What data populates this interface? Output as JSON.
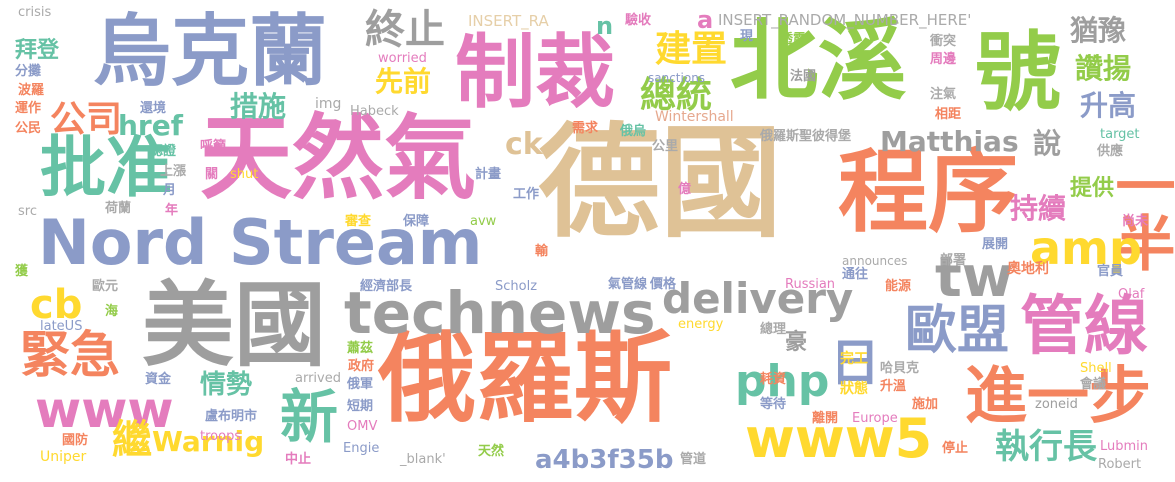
{
  "palette": {
    "tan": "#dfc296",
    "orange": "#f4845f",
    "green": "#93cc4a",
    "pink": "#e47cbd",
    "blue": "#8b9bc8",
    "gray": "#9e9e9e",
    "yellow": "#ffd92f",
    "teal": "#66c2a5"
  },
  "words": [
    {
      "id": "w1",
      "text": "德國",
      "color": "#dfc296"
    },
    {
      "id": "w2",
      "text": "天然氣",
      "color": "#e47cbd"
    },
    {
      "id": "w3",
      "text": "程序",
      "color": "#f4845f"
    },
    {
      "id": "w4",
      "text": "北溪",
      "color": "#93cc4a"
    },
    {
      "id": "w5",
      "text": "號",
      "color": "#93cc4a"
    },
    {
      "id": "w6",
      "text": "俄羅斯",
      "color": "#f4845f"
    },
    {
      "id": "w7",
      "text": "美國",
      "color": "#9e9e9e"
    },
    {
      "id": "w8",
      "text": "烏克蘭",
      "color": "#8b9bc8"
    },
    {
      "id": "w9",
      "text": "制裁",
      "color": "#e47cbd"
    },
    {
      "id": "w10",
      "text": "Nord Stream",
      "color": "#8b9bc8"
    },
    {
      "id": "w11",
      "text": "technews",
      "color": "#9e9e9e"
    },
    {
      "id": "w12",
      "text": "批准",
      "color": "#66c2a5"
    },
    {
      "id": "w13",
      "text": "管線",
      "color": "#e47cbd"
    },
    {
      "id": "w14",
      "text": "進一步",
      "color": "#f4845f"
    },
    {
      "id": "w15",
      "text": "www5",
      "color": "#ffd92f"
    },
    {
      "id": "w16",
      "text": "www",
      "color": "#e47cbd"
    },
    {
      "id": "w17",
      "text": "delivery",
      "color": "#9e9e9e"
    },
    {
      "id": "w18",
      "text": "一半",
      "color": "#f4845f"
    },
    {
      "id": "w19",
      "text": "amp",
      "color": "#ffd92f"
    },
    {
      "id": "w20",
      "text": "tw",
      "color": "#9e9e9e"
    },
    {
      "id": "w21",
      "text": "歐盟",
      "color": "#8b9bc8"
    },
    {
      "id": "w22",
      "text": "php",
      "color": "#66c2a5"
    },
    {
      "id": "w23",
      "text": "日",
      "color": "#8b9bc8"
    },
    {
      "id": "w24",
      "text": "新",
      "color": "#66c2a5"
    },
    {
      "id": "w25",
      "text": "緊急",
      "color": "#f4845f"
    },
    {
      "id": "w26",
      "text": "cb",
      "color": "#ffd92f"
    },
    {
      "id": "w27",
      "text": "a4b3f35b",
      "color": "#8b9bc8"
    },
    {
      "id": "w28",
      "text": "執行長",
      "color": "#66c2a5"
    },
    {
      "id": "w29",
      "text": "Matthias",
      "color": "#9e9e9e"
    },
    {
      "id": "w30",
      "text": "公司",
      "color": "#f4845f"
    },
    {
      "id": "w31",
      "text": "href",
      "color": "#66c2a5"
    },
    {
      "id": "w32",
      "text": "措施",
      "color": "#66c2a5"
    },
    {
      "id": "w33",
      "text": "先前",
      "color": "#ffd92f"
    },
    {
      "id": "w34",
      "text": "終止",
      "color": "#9e9e9e"
    },
    {
      "id": "w35",
      "text": "建置",
      "color": "#ffd92f"
    },
    {
      "id": "w36",
      "text": "總統",
      "color": "#93cc4a"
    },
    {
      "id": "w37",
      "text": "ck",
      "color": "#dfc296"
    },
    {
      "id": "w38",
      "text": "猶豫",
      "color": "#9e9e9e"
    },
    {
      "id": "w39",
      "text": "讚揚",
      "color": "#93cc4a"
    },
    {
      "id": "w40",
      "text": "升高",
      "color": "#8b9bc8"
    },
    {
      "id": "w41",
      "text": "說",
      "color": "#9e9e9e"
    },
    {
      "id": "w42",
      "text": "持續",
      "color": "#e47cbd"
    },
    {
      "id": "w43",
      "text": "提供",
      "color": "#93cc4a"
    },
    {
      "id": "w44",
      "text": "拜登",
      "color": "#66c2a5"
    },
    {
      "id": "w45",
      "text": "情勢",
      "color": "#66c2a5"
    },
    {
      "id": "w46",
      "text": "Warnig",
      "color": "#ffd92f"
    },
    {
      "id": "w47",
      "text": "繼",
      "color": "#ffd92f"
    },
    {
      "id": "w48",
      "text": "豪",
      "color": "#9e9e9e"
    },
    {
      "id": "w49",
      "text": "n",
      "color": "#66c2a5"
    },
    {
      "id": "w50",
      "text": "a",
      "color": "#e47cbd"
    },
    {
      "id": "w51",
      "text": "完工",
      "color": "#ffd92f"
    },
    {
      "id": "w52",
      "text": "狀態",
      "color": "#ffd92f"
    },
    {
      "id": "w53",
      "text": "奧地利",
      "color": "#f4845f"
    },
    {
      "id": "w54",
      "text": "INSERT_RA",
      "color": "#e6cfa8"
    },
    {
      "id": "w55",
      "text": "INSERT_RANDOM_NUMBER_HERE'",
      "color": "#aaaaaa"
    },
    {
      "id": "w56",
      "text": "crisis",
      "color": "#aaaaaa"
    },
    {
      "id": "w57",
      "text": "分攤",
      "color": "#8b9bc8"
    },
    {
      "id": "w58",
      "text": "波羅",
      "color": "#f4845f"
    },
    {
      "id": "w59",
      "text": "運作",
      "color": "#f4845f"
    },
    {
      "id": "w60",
      "text": "公民",
      "color": "#f4845f"
    },
    {
      "id": "w61",
      "text": "還境",
      "color": "#8b9bc8"
    },
    {
      "id": "w62",
      "text": "呼籲",
      "color": "#e47cbd"
    },
    {
      "id": "w63",
      "text": "認證",
      "color": "#66c2a5"
    },
    {
      "id": "w64",
      "text": "上漲",
      "color": "#aaaaaa"
    },
    {
      "id": "w65",
      "text": "月",
      "color": "#8b9bc8"
    },
    {
      "id": "w66",
      "text": "關",
      "color": "#e47cbd"
    },
    {
      "id": "w67",
      "text": "shut",
      "color": "#ffd92f"
    },
    {
      "id": "w68",
      "text": "年",
      "color": "#e47cbd"
    },
    {
      "id": "w69",
      "text": "荷蘭",
      "color": "#aaaaaa"
    },
    {
      "id": "w70",
      "text": "src",
      "color": "#aaaaaa"
    },
    {
      "id": "w71",
      "text": "img",
      "color": "#aaaaaa"
    },
    {
      "id": "w72",
      "text": "Habeck",
      "color": "#aaaaaa"
    },
    {
      "id": "w73",
      "text": "worried",
      "color": "#e47cbd"
    },
    {
      "id": "w74",
      "text": "Wintershall",
      "color": "#e6a98f"
    },
    {
      "id": "w75",
      "text": "sanctions",
      "color": "#8b9bc8"
    },
    {
      "id": "w76",
      "text": "驗收",
      "color": "#e47cbd"
    },
    {
      "id": "w77",
      "text": "現",
      "color": "#8b9bc8"
    },
    {
      "id": "w78",
      "text": "透露",
      "color": "#93cc4a"
    },
    {
      "id": "w79",
      "text": "衝突",
      "color": "#aaaaaa"
    },
    {
      "id": "w80",
      "text": "周邊",
      "color": "#e47cbd"
    },
    {
      "id": "w81",
      "text": "法國",
      "color": "#9e9e9e"
    },
    {
      "id": "w82",
      "text": "注氣",
      "color": "#aaaaaa"
    },
    {
      "id": "w83",
      "text": "相距",
      "color": "#f4845f"
    },
    {
      "id": "w84",
      "text": "需求",
      "color": "#f4845f"
    },
    {
      "id": "w85",
      "text": "俄烏",
      "color": "#66c2a5"
    },
    {
      "id": "w86",
      "text": "俄羅斯聖彼得堡",
      "color": "#aaaaaa"
    },
    {
      "id": "w87",
      "text": "公里",
      "color": "#aaaaaa"
    },
    {
      "id": "w88",
      "text": "target",
      "color": "#66c2a5"
    },
    {
      "id": "w89",
      "text": "供應",
      "color": "#aaaaaa"
    },
    {
      "id": "w90",
      "text": "計畫",
      "color": "#8b9bc8"
    },
    {
      "id": "w91",
      "text": "工作",
      "color": "#8b9bc8"
    },
    {
      "id": "w92",
      "text": "億",
      "color": "#e47cbd"
    },
    {
      "id": "w93",
      "text": "審查",
      "color": "#ffd92f"
    },
    {
      "id": "w94",
      "text": "保障",
      "color": "#8b9bc8"
    },
    {
      "id": "w95",
      "text": "avw",
      "color": "#93cc4a"
    },
    {
      "id": "w96",
      "text": "輸",
      "color": "#f4845f"
    },
    {
      "id": "w97",
      "text": "尚未",
      "color": "#e47cbd"
    },
    {
      "id": "w98",
      "text": "展開",
      "color": "#8b9bc8"
    },
    {
      "id": "w99",
      "text": "部署",
      "color": "#aaaaaa"
    },
    {
      "id": "w100",
      "text": "announces",
      "color": "#aaaaaa"
    },
    {
      "id": "w101",
      "text": "通往",
      "color": "#8b9bc8"
    },
    {
      "id": "w102",
      "text": "官員",
      "color": "#8b9bc8"
    },
    {
      "id": "w103",
      "text": "能源",
      "color": "#f4845f"
    },
    {
      "id": "w104",
      "text": "獲",
      "color": "#93cc4a"
    },
    {
      "id": "w105",
      "text": "歐元",
      "color": "#aaaaaa"
    },
    {
      "id": "w106",
      "text": "經濟部長",
      "color": "#8b9bc8"
    },
    {
      "id": "w107",
      "text": "Scholz",
      "color": "#8b9bc8"
    },
    {
      "id": "w108",
      "text": "氣管線",
      "color": "#8b9bc8"
    },
    {
      "id": "w109",
      "text": "價格",
      "color": "#8b9bc8"
    },
    {
      "id": "w110",
      "text": "Russian",
      "color": "#e47cbd"
    },
    {
      "id": "w111",
      "text": "Olaf",
      "color": "#e47cbd"
    },
    {
      "id": "w112",
      "text": "lateUS",
      "color": "#8b9bc8"
    },
    {
      "id": "w113",
      "text": "海",
      "color": "#93cc4a"
    },
    {
      "id": "w114",
      "text": "energy",
      "color": "#ffd92f"
    },
    {
      "id": "w115",
      "text": "總理",
      "color": "#aaaaaa"
    },
    {
      "id": "w116",
      "text": "蕭茲",
      "color": "#93cc4a"
    },
    {
      "id": "w117",
      "text": "政府",
      "color": "#f4845f"
    },
    {
      "id": "w118",
      "text": "資金",
      "color": "#8b9bc8"
    },
    {
      "id": "w119",
      "text": "arrived",
      "color": "#aaaaaa"
    },
    {
      "id": "w120",
      "text": "俄軍",
      "color": "#8b9bc8"
    },
    {
      "id": "w121",
      "text": "耗資",
      "color": "#f4845f"
    },
    {
      "id": "w122",
      "text": "哈貝克",
      "color": "#aaaaaa"
    },
    {
      "id": "w123",
      "text": "升溫",
      "color": "#f4845f"
    },
    {
      "id": "w124",
      "text": "會議",
      "color": "#aaaaaa"
    },
    {
      "id": "w125",
      "text": "施加",
      "color": "#f4845f"
    },
    {
      "id": "w126",
      "text": "Shell",
      "color": "#ffd92f"
    },
    {
      "id": "w127",
      "text": "盧布明市",
      "color": "#8b9bc8"
    },
    {
      "id": "w128",
      "text": "troops",
      "color": "#e47cbd"
    },
    {
      "id": "w129",
      "text": "短期",
      "color": "#8b9bc8"
    },
    {
      "id": "w130",
      "text": "OMV",
      "color": "#e47cbd"
    },
    {
      "id": "w131",
      "text": "等待",
      "color": "#8b9bc8"
    },
    {
      "id": "w132",
      "text": "離開",
      "color": "#f4845f"
    },
    {
      "id": "w133",
      "text": "Europe",
      "color": "#e47cbd"
    },
    {
      "id": "w134",
      "text": "zoneid",
      "color": "#9e9e9e"
    },
    {
      "id": "w135",
      "text": "國防",
      "color": "#f4845f"
    },
    {
      "id": "w136",
      "text": "Uniper",
      "color": "#ffd92f"
    },
    {
      "id": "w137",
      "text": "中止",
      "color": "#e47cbd"
    },
    {
      "id": "w138",
      "text": "Engie",
      "color": "#8b9bc8"
    },
    {
      "id": "w139",
      "text": "_blank'",
      "color": "#aaaaaa"
    },
    {
      "id": "w140",
      "text": "天然",
      "color": "#93cc4a"
    },
    {
      "id": "w141",
      "text": "管道",
      "color": "#aaaaaa"
    },
    {
      "id": "w142",
      "text": "停止",
      "color": "#f4845f"
    },
    {
      "id": "w143",
      "text": "Lubmin",
      "color": "#e47cbd"
    },
    {
      "id": "w144",
      "text": "Robert",
      "color": "#aaaaaa"
    }
  ]
}
